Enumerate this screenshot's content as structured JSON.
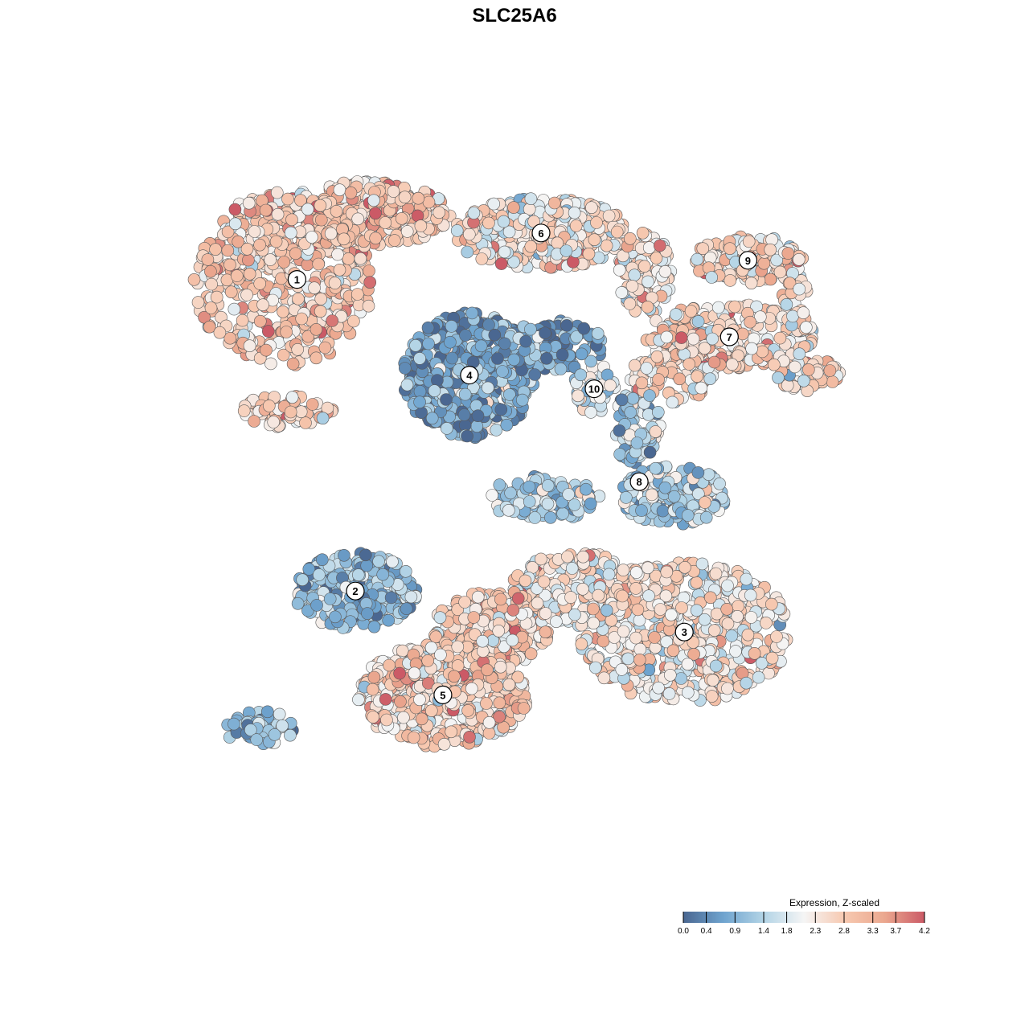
{
  "chart_data": {
    "type": "scatter",
    "title": "SLC25A6",
    "legend": {
      "title": "Expression, Z-scaled",
      "ticks": [
        "0.0",
        "0.4",
        "0.9",
        "1.4",
        "1.8",
        "2.3",
        "2.8",
        "3.3",
        "3.7",
        "4.2"
      ],
      "range": [
        0.0,
        4.2
      ],
      "colors": [
        "#4a6791",
        "#6fa4cf",
        "#b3d4e6",
        "#f5f5f5",
        "#f7c9b1",
        "#eba88f",
        "#cb5a66"
      ],
      "placement": "bottom-right"
    },
    "clusters": [
      {
        "id": "1",
        "label": "1",
        "x": -8.2,
        "y": 8.6,
        "mean_expr": 2.8
      },
      {
        "id": "2",
        "label": "2",
        "x": -6.0,
        "y": -2.8,
        "mean_expr": 1.1
      },
      {
        "id": "3",
        "label": "3",
        "x": 6.4,
        "y": -4.3,
        "mean_expr": 2.3
      },
      {
        "id": "4",
        "label": "4",
        "x": -1.7,
        "y": 5.1,
        "mean_expr": 0.7
      },
      {
        "id": "5",
        "label": "5",
        "x": -2.7,
        "y": -6.6,
        "mean_expr": 2.6
      },
      {
        "id": "6",
        "label": "6",
        "x": 1.0,
        "y": 10.3,
        "mean_expr": 2.4
      },
      {
        "id": "7",
        "label": "7",
        "x": 8.1,
        "y": 6.5,
        "mean_expr": 2.6
      },
      {
        "id": "8",
        "label": "8",
        "x": 4.7,
        "y": 1.2,
        "mean_expr": 1.3
      },
      {
        "id": "9",
        "label": "9",
        "x": 8.8,
        "y": 9.3,
        "mean_expr": 2.5
      },
      {
        "id": "10",
        "label": "10",
        "x": 3.0,
        "y": 4.6,
        "mean_expr": 1.6
      }
    ]
  }
}
